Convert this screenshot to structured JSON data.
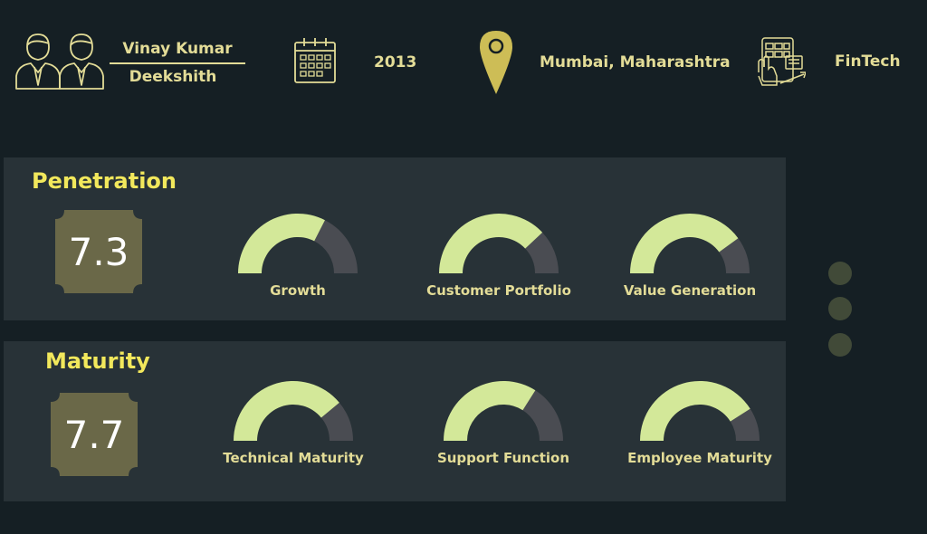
{
  "header": {
    "founders": {
      "icon": "founders-icon",
      "primary": "Vinay Kumar",
      "secondary": "Deekshith"
    },
    "year": {
      "icon": "calendar-icon",
      "value": "2013"
    },
    "location": {
      "icon": "location-pin-icon",
      "value": "Mumbai, Maharashtra"
    },
    "sector": {
      "icon": "fintech-icon",
      "value": "FinTech"
    }
  },
  "penetration": {
    "title": "Penetration",
    "score": "7.3",
    "gauges": [
      {
        "label": "Growth",
        "fraction": 0.65
      },
      {
        "label": "Customer Portfolio",
        "fraction": 0.76
      },
      {
        "label": "Value Generation",
        "fraction": 0.8
      }
    ]
  },
  "maturity": {
    "title": "Maturity",
    "score": "7.7",
    "gauges": [
      {
        "label": "Technical Maturity",
        "fraction": 0.78
      },
      {
        "label": "Support Function",
        "fraction": 0.68
      },
      {
        "label": "Employee Maturity",
        "fraction": 0.82
      }
    ]
  },
  "colors": {
    "background": "#151f24",
    "panel": "#283237",
    "accent_text": "#e3dc97",
    "title_yellow": "#f2e85c",
    "gauge_fill": "#d3e899",
    "gauge_track": "#4a4c52",
    "badge": "#6a6848",
    "dot": "#414a38"
  }
}
